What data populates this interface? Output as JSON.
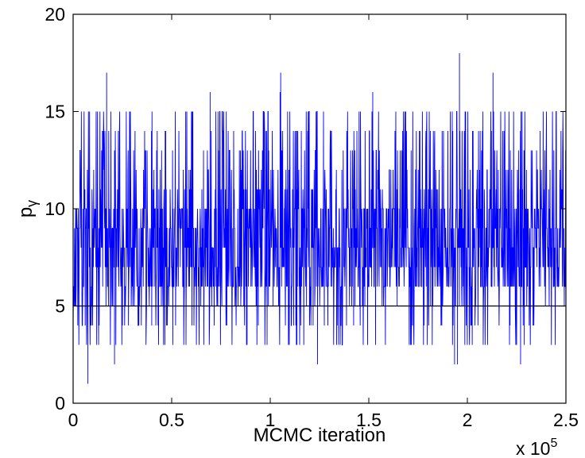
{
  "chart_data": {
    "type": "line",
    "title": "",
    "xlabel": "MCMC iteration",
    "ylabel": "p",
    "ylabel_subscript": "γ",
    "x_exponent": {
      "prefix": "x 10",
      "power": "5"
    },
    "xlim": [
      0,
      2.5
    ],
    "ylim": [
      0,
      20
    ],
    "xticks": [
      0,
      0.5,
      1,
      1.5,
      2,
      2.5
    ],
    "xtick_labels": [
      "0",
      "0.5",
      "1",
      "1.5",
      "2",
      "2.5"
    ],
    "yticks": [
      0,
      5,
      10,
      15,
      20
    ],
    "ytick_labels": [
      "0",
      "5",
      "10",
      "15",
      "20"
    ],
    "grid": false,
    "reference_line": {
      "y": 5,
      "color": "#000000"
    },
    "series": [
      {
        "color": "#0000ff",
        "typical_range": [
          6,
          10
        ],
        "lower_excursion_range": [
          3,
          5
        ],
        "upper_excursion_range": [
          11,
          15
        ],
        "extremes": [
          {
            "x": 0.075,
            "y": 1
          },
          {
            "x": 0.21,
            "y": 2
          },
          {
            "x": 1.24,
            "y": 2
          },
          {
            "x": 1.935,
            "y": 2
          },
          {
            "x": 1.95,
            "y": 2
          },
          {
            "x": 2.27,
            "y": 2
          },
          {
            "x": 0.17,
            "y": 17
          },
          {
            "x": 0.695,
            "y": 16
          },
          {
            "x": 1.053,
            "y": 17
          },
          {
            "x": 1.05,
            "y": 16
          },
          {
            "x": 1.52,
            "y": 16
          },
          {
            "x": 1.96,
            "y": 18
          },
          {
            "x": 2.13,
            "y": 17
          }
        ]
      }
    ]
  }
}
